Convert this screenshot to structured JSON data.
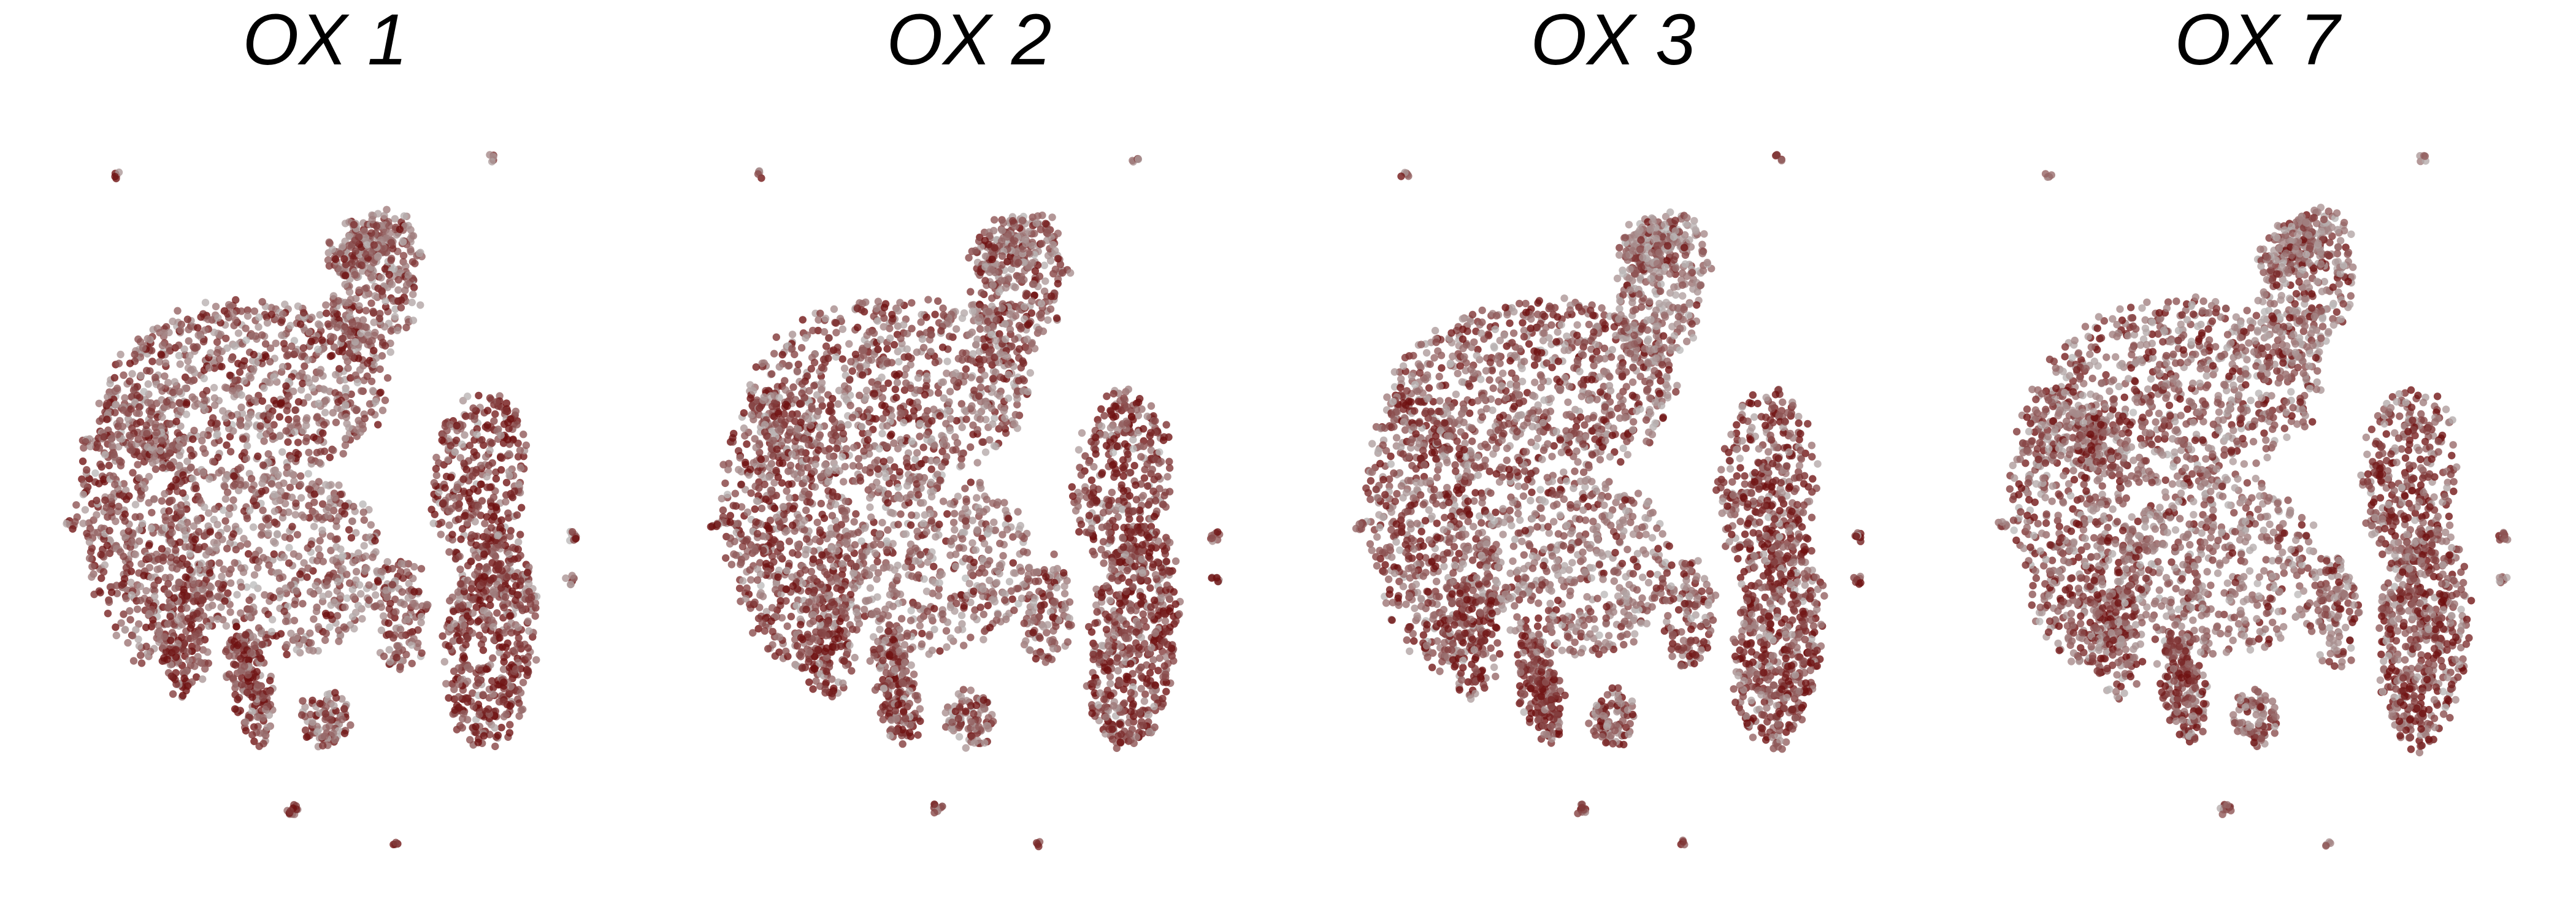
{
  "chart_data": [
    {
      "type": "scatter",
      "title": "OX 1",
      "seed": 11,
      "colors": {
        "low": "#bdbdbd",
        "high": "#6e1010"
      },
      "bias": {
        "left": 0.55,
        "right": 0.75,
        "stem": 0.75,
        "center": 0.3,
        "top": 0.3,
        "mid": 0.45,
        "islands": 0.4
      }
    },
    {
      "type": "scatter",
      "title": "OX 2",
      "seed": 23,
      "colors": {
        "low": "#bdbdbd",
        "high": "#6e1010"
      },
      "bias": {
        "left": 0.6,
        "right": 0.75,
        "stem": 0.7,
        "center": 0.28,
        "top": 0.35,
        "mid": 0.45,
        "islands": 0.35
      }
    },
    {
      "type": "scatter",
      "title": "OX 3",
      "seed": 37,
      "colors": {
        "low": "#bdbdbd",
        "high": "#6e1010"
      },
      "bias": {
        "left": 0.5,
        "right": 0.7,
        "stem": 0.8,
        "center": 0.18,
        "top": 0.15,
        "mid": 0.5,
        "islands": 0.9
      }
    },
    {
      "type": "scatter",
      "title": "OX 7",
      "seed": 53,
      "colors": {
        "low": "#bdbdbd",
        "high": "#6e1010"
      },
      "bias": {
        "left": 0.55,
        "right": 0.65,
        "stem": 0.6,
        "center": 0.2,
        "top": 0.25,
        "mid": 0.4,
        "islands": 0.3
      }
    }
  ]
}
